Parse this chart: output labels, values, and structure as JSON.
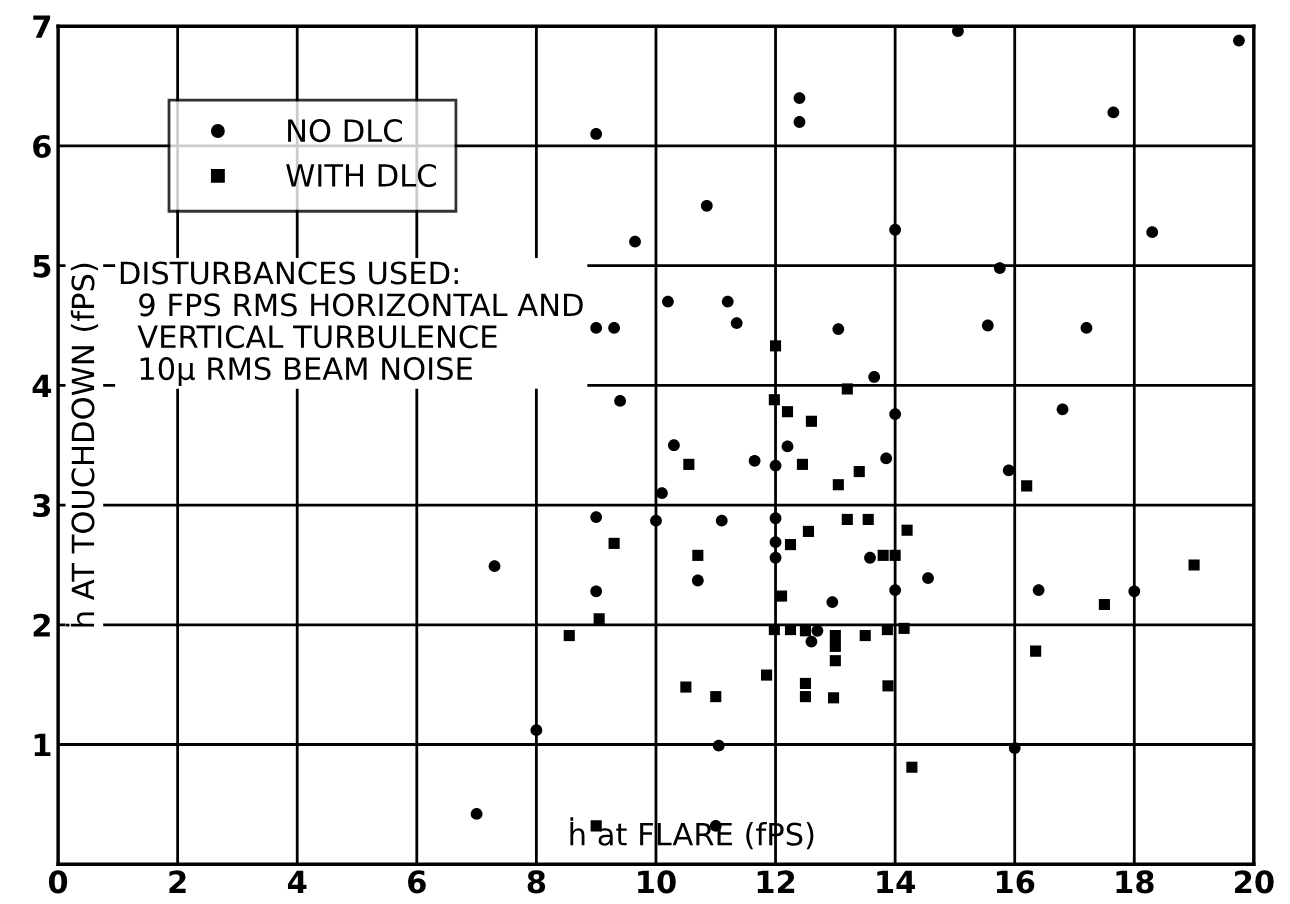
{
  "chart_data": {
    "type": "scatter",
    "xlabel": "ḣ at FLARE (fPS)",
    "ylabel": "ḣ AT TOUCHDOWN (fPS)",
    "annotations": [
      "DISTURBANCES USED:\n  9 FPS RMS HORIZONTAL AND\n  VERTICAL TURBULENCE\n  10μ RMS BEAM NOISE"
    ],
    "xlim": [
      0,
      20
    ],
    "xticks": [
      0,
      2,
      4,
      6,
      8,
      10,
      12,
      14,
      16,
      18,
      20
    ],
    "ylim": [
      0,
      7
    ],
    "yticks": [
      1,
      2,
      3,
      4,
      5,
      6,
      7
    ],
    "grid": true,
    "legend": "top left",
    "series": [
      {
        "name": "NO DLC",
        "color": "#000000",
        "marker": "circle",
        "x": [
          7.0,
          7.3,
          8.0,
          9.0,
          9.0,
          9.0,
          9.0,
          9.3,
          9.4,
          9.65,
          10.85,
          12.4,
          12.4,
          14.0,
          15.05,
          19.75,
          17.65,
          18.3,
          15.75,
          10.2,
          11.2,
          11.35,
          13.05,
          15.55,
          17.2,
          13.65,
          16.8,
          14.0,
          10.3,
          11.65,
          12.0,
          12.2,
          13.85,
          10.1,
          10.0,
          11.1,
          12.0,
          12.0,
          12.0,
          13.58,
          14.0,
          14.55,
          10.7,
          12.95,
          16.4,
          18.0,
          12.6,
          12.7,
          11.05,
          16.0,
          11.0,
          15.9
        ],
        "values": [
          0.42,
          2.49,
          1.12,
          6.1,
          2.9,
          2.28,
          4.48,
          4.48,
          3.87,
          5.2,
          5.5,
          6.4,
          6.2,
          5.3,
          6.96,
          6.88,
          6.28,
          5.28,
          4.98,
          4.7,
          4.7,
          4.52,
          4.47,
          4.5,
          4.48,
          4.07,
          3.8,
          3.76,
          3.5,
          3.37,
          3.33,
          3.49,
          3.39,
          3.1,
          2.87,
          2.87,
          2.89,
          2.69,
          2.56,
          2.56,
          2.29,
          2.39,
          2.37,
          2.19,
          2.29,
          2.28,
          1.86,
          1.95,
          0.99,
          0.97,
          0.32,
          3.29
        ]
      },
      {
        "name": "WITH DLC",
        "color": "#000000",
        "marker": "square",
        "x": [
          8.55,
          9.05,
          9.0,
          9.3,
          10.55,
          12.45,
          13.4,
          13.05,
          16.2,
          13.2,
          13.55,
          12.55,
          14.2,
          12.25,
          10.7,
          13.8,
          14.0,
          12.1,
          17.5,
          19.0,
          11.98,
          12.25,
          12.5,
          13.0,
          13.0,
          13.5,
          13.87,
          14.15,
          13.0,
          16.35,
          11.85,
          10.5,
          11.0,
          12.5,
          12.5,
          12.97,
          13.88,
          14.28,
          12.0,
          13.2,
          11.98,
          12.2,
          12.6
        ],
        "values": [
          1.91,
          2.05,
          0.32,
          2.68,
          3.34,
          3.34,
          3.28,
          3.17,
          3.16,
          2.88,
          2.88,
          2.78,
          2.79,
          2.67,
          2.58,
          2.58,
          2.58,
          2.24,
          2.17,
          2.5,
          1.96,
          1.96,
          1.95,
          1.91,
          1.82,
          1.91,
          1.96,
          1.97,
          1.7,
          1.78,
          1.58,
          1.48,
          1.4,
          1.51,
          1.4,
          1.39,
          1.49,
          0.81,
          4.33,
          3.97,
          3.88,
          3.78,
          3.7
        ]
      }
    ]
  }
}
